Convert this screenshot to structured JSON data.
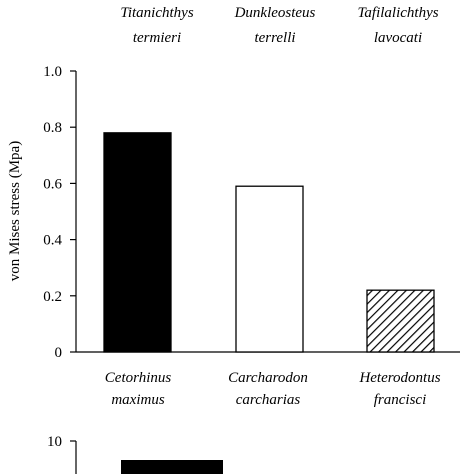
{
  "chart_data": [
    {
      "type": "bar",
      "ylabel": "von Mises stress (Mpa)",
      "ylim": [
        0,
        1.0
      ],
      "yticks": [
        "0",
        "0.2",
        "0.4",
        "0.6",
        "0.8",
        "1.0"
      ],
      "categories": [
        {
          "top": [
            "Titanichthys",
            "termieri"
          ],
          "bottom": [
            "Cetorhinus",
            "maximus"
          ]
        },
        {
          "top": [
            "Dunkleosteus",
            "terrelli"
          ],
          "bottom": [
            "Carcharodon",
            "carcharias"
          ]
        },
        {
          "top": [
            "Tafilalichthys",
            "lavocati"
          ],
          "bottom": [
            "Heterodontus",
            "francisci"
          ]
        }
      ],
      "values": [
        0.78,
        0.59,
        0.22
      ],
      "bar_styles": [
        "solid-black",
        "white",
        "hatched"
      ]
    },
    {
      "type": "bar",
      "yticks": [
        "10"
      ],
      "note": "partially visible second panel"
    }
  ]
}
